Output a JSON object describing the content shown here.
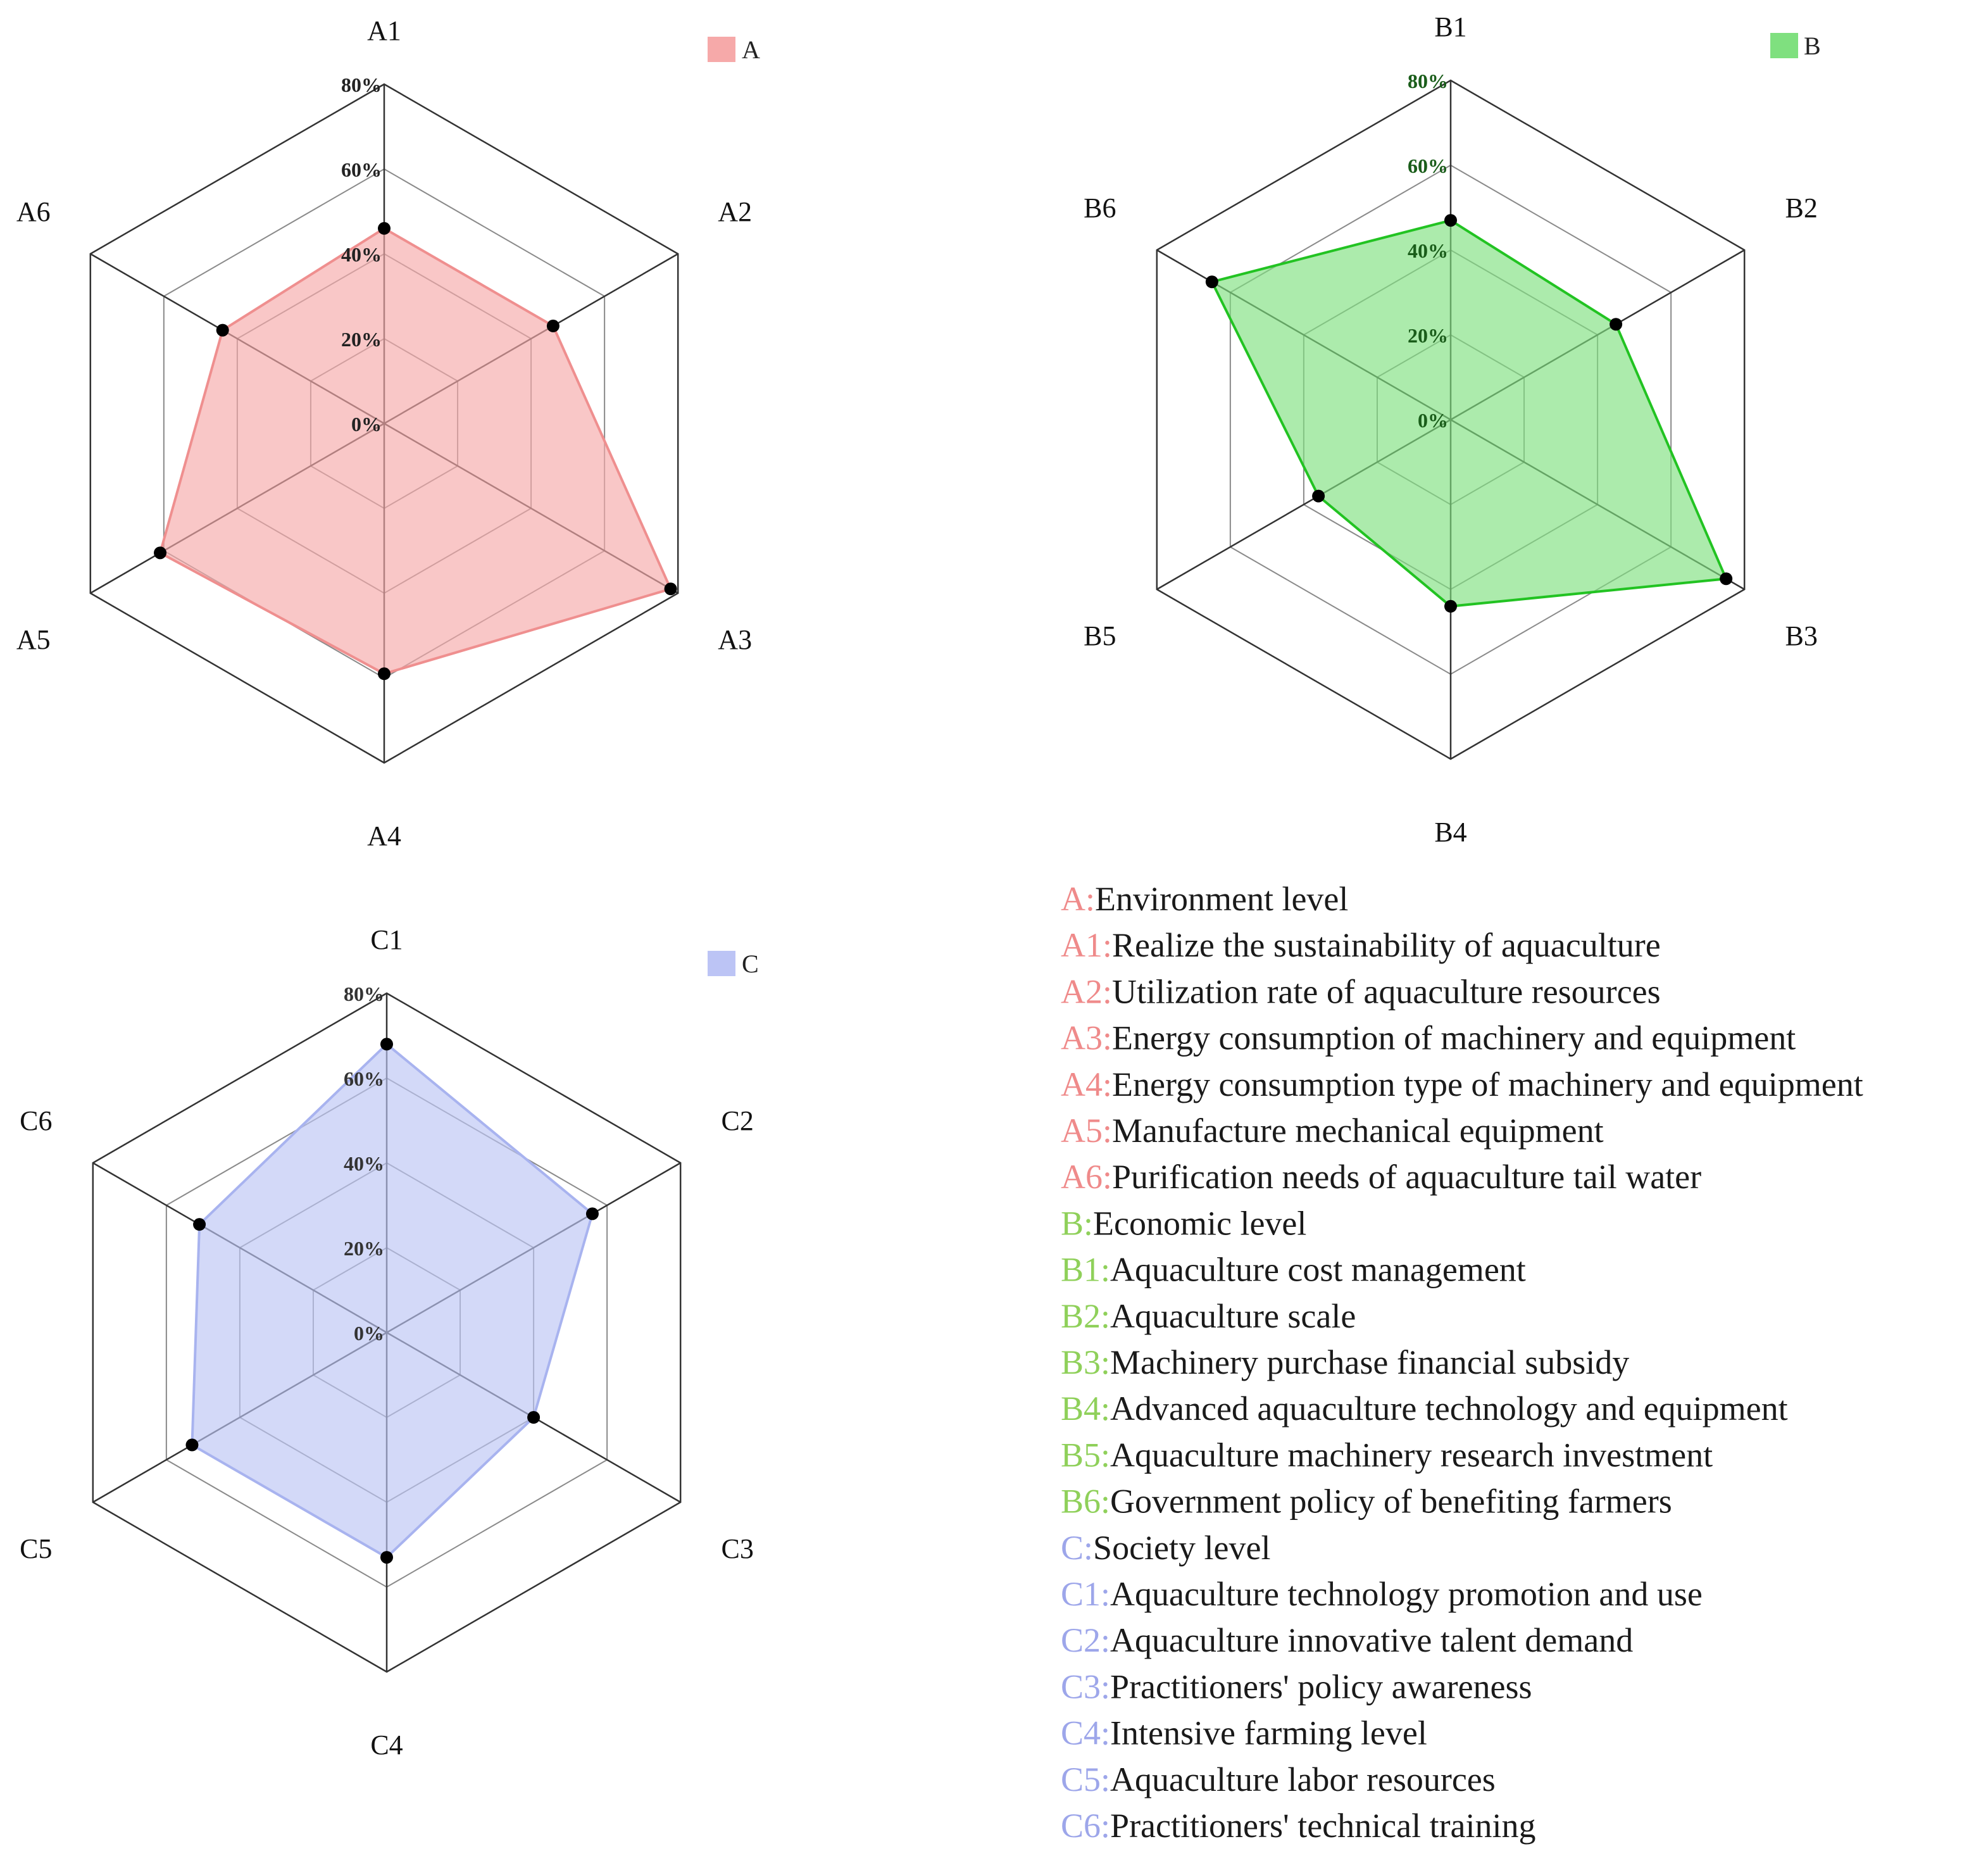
{
  "chart_data": [
    {
      "type": "radar",
      "series_name": "A",
      "color": "#f6a9a9",
      "stroke": "#ef8f8f",
      "axes": [
        "A1",
        "A2",
        "A3",
        "A4",
        "A5",
        "A6"
      ],
      "values": [
        46,
        46,
        78,
        59,
        61,
        44
      ],
      "ticks": [
        "0%",
        "20%",
        "40%",
        "60%",
        "80%"
      ],
      "rmax": 80,
      "tick_color": "#222222"
    },
    {
      "type": "radar",
      "series_name": "B",
      "color": "#7fe07f",
      "stroke": "#22c322",
      "axes": [
        "B1",
        "B2",
        "B3",
        "B4",
        "B5",
        "B6"
      ],
      "values": [
        47,
        45,
        75,
        44,
        36,
        65
      ],
      "ticks": [
        "0%",
        "20%",
        "40%",
        "60%",
        "80%"
      ],
      "rmax": 80,
      "tick_color": "#1a5d1a"
    },
    {
      "type": "radar",
      "series_name": "C",
      "color": "#bcc4f5",
      "stroke": "#a8b3ef",
      "axes": [
        "C1",
        "C2",
        "C3",
        "C4",
        "C5",
        "C6"
      ],
      "values": [
        68,
        56,
        40,
        53,
        53,
        51
      ],
      "ticks": [
        "0%",
        "20%",
        "40%",
        "60%",
        "80%"
      ],
      "rmax": 80,
      "tick_color": "#333333"
    }
  ],
  "legend": [
    {
      "key": "A:",
      "text": "Environment level",
      "color": "#ef8a8a"
    },
    {
      "key": "A1:",
      "text": "Realize the sustainability of aquaculture",
      "color": "#ef8a8a"
    },
    {
      "key": "A2:",
      "text": "Utilization rate of aquaculture resources",
      "color": "#ef8a8a"
    },
    {
      "key": "A3:",
      "text": "Energy consumption of machinery and equipment",
      "color": "#ef8a8a"
    },
    {
      "key": "A4:",
      "text": "Energy consumption type of machinery and equipment",
      "color": "#ef8a8a"
    },
    {
      "key": "A5:",
      "text": "Manufacture mechanical equipment",
      "color": "#ef8a8a"
    },
    {
      "key": "A6:",
      "text": "Purification needs of aquaculture tail water",
      "color": "#ef8a8a"
    },
    {
      "key": "B:",
      "text": "Economic level",
      "color": "#8fd05a"
    },
    {
      "key": "B1:",
      "text": "Aquaculture cost management",
      "color": "#8fd05a"
    },
    {
      "key": "B2:",
      "text": "Aquaculture scale",
      "color": "#8fd05a"
    },
    {
      "key": "B3:",
      "text": "Machinery purchase financial subsidy",
      "color": "#8fd05a"
    },
    {
      "key": "B4:",
      "text": "Advanced aquaculture technology and equipment",
      "color": "#8fd05a"
    },
    {
      "key": "B5:",
      "text": "Aquaculture machinery research investment",
      "color": "#8fd05a"
    },
    {
      "key": "B6:",
      "text": "Government policy of benefiting farmers",
      "color": "#8fd05a"
    },
    {
      "key": "C:",
      "text": "Society level",
      "color": "#9da6ea"
    },
    {
      "key": "C1:",
      "text": "Aquaculture technology promotion and use",
      "color": "#9da6ea"
    },
    {
      "key": "C2:",
      "text": "Aquaculture innovative talent demand",
      "color": "#9da6ea"
    },
    {
      "key": "C3:",
      "text": "Practitioners' policy awareness",
      "color": "#9da6ea"
    },
    {
      "key": "C4:",
      "text": "Intensive farming level",
      "color": "#9da6ea"
    },
    {
      "key": "C5:",
      "text": "Aquaculture labor resources",
      "color": "#9da6ea"
    },
    {
      "key": "C6:",
      "text": "Practitioners' technical training",
      "color": "#9da6ea"
    }
  ]
}
